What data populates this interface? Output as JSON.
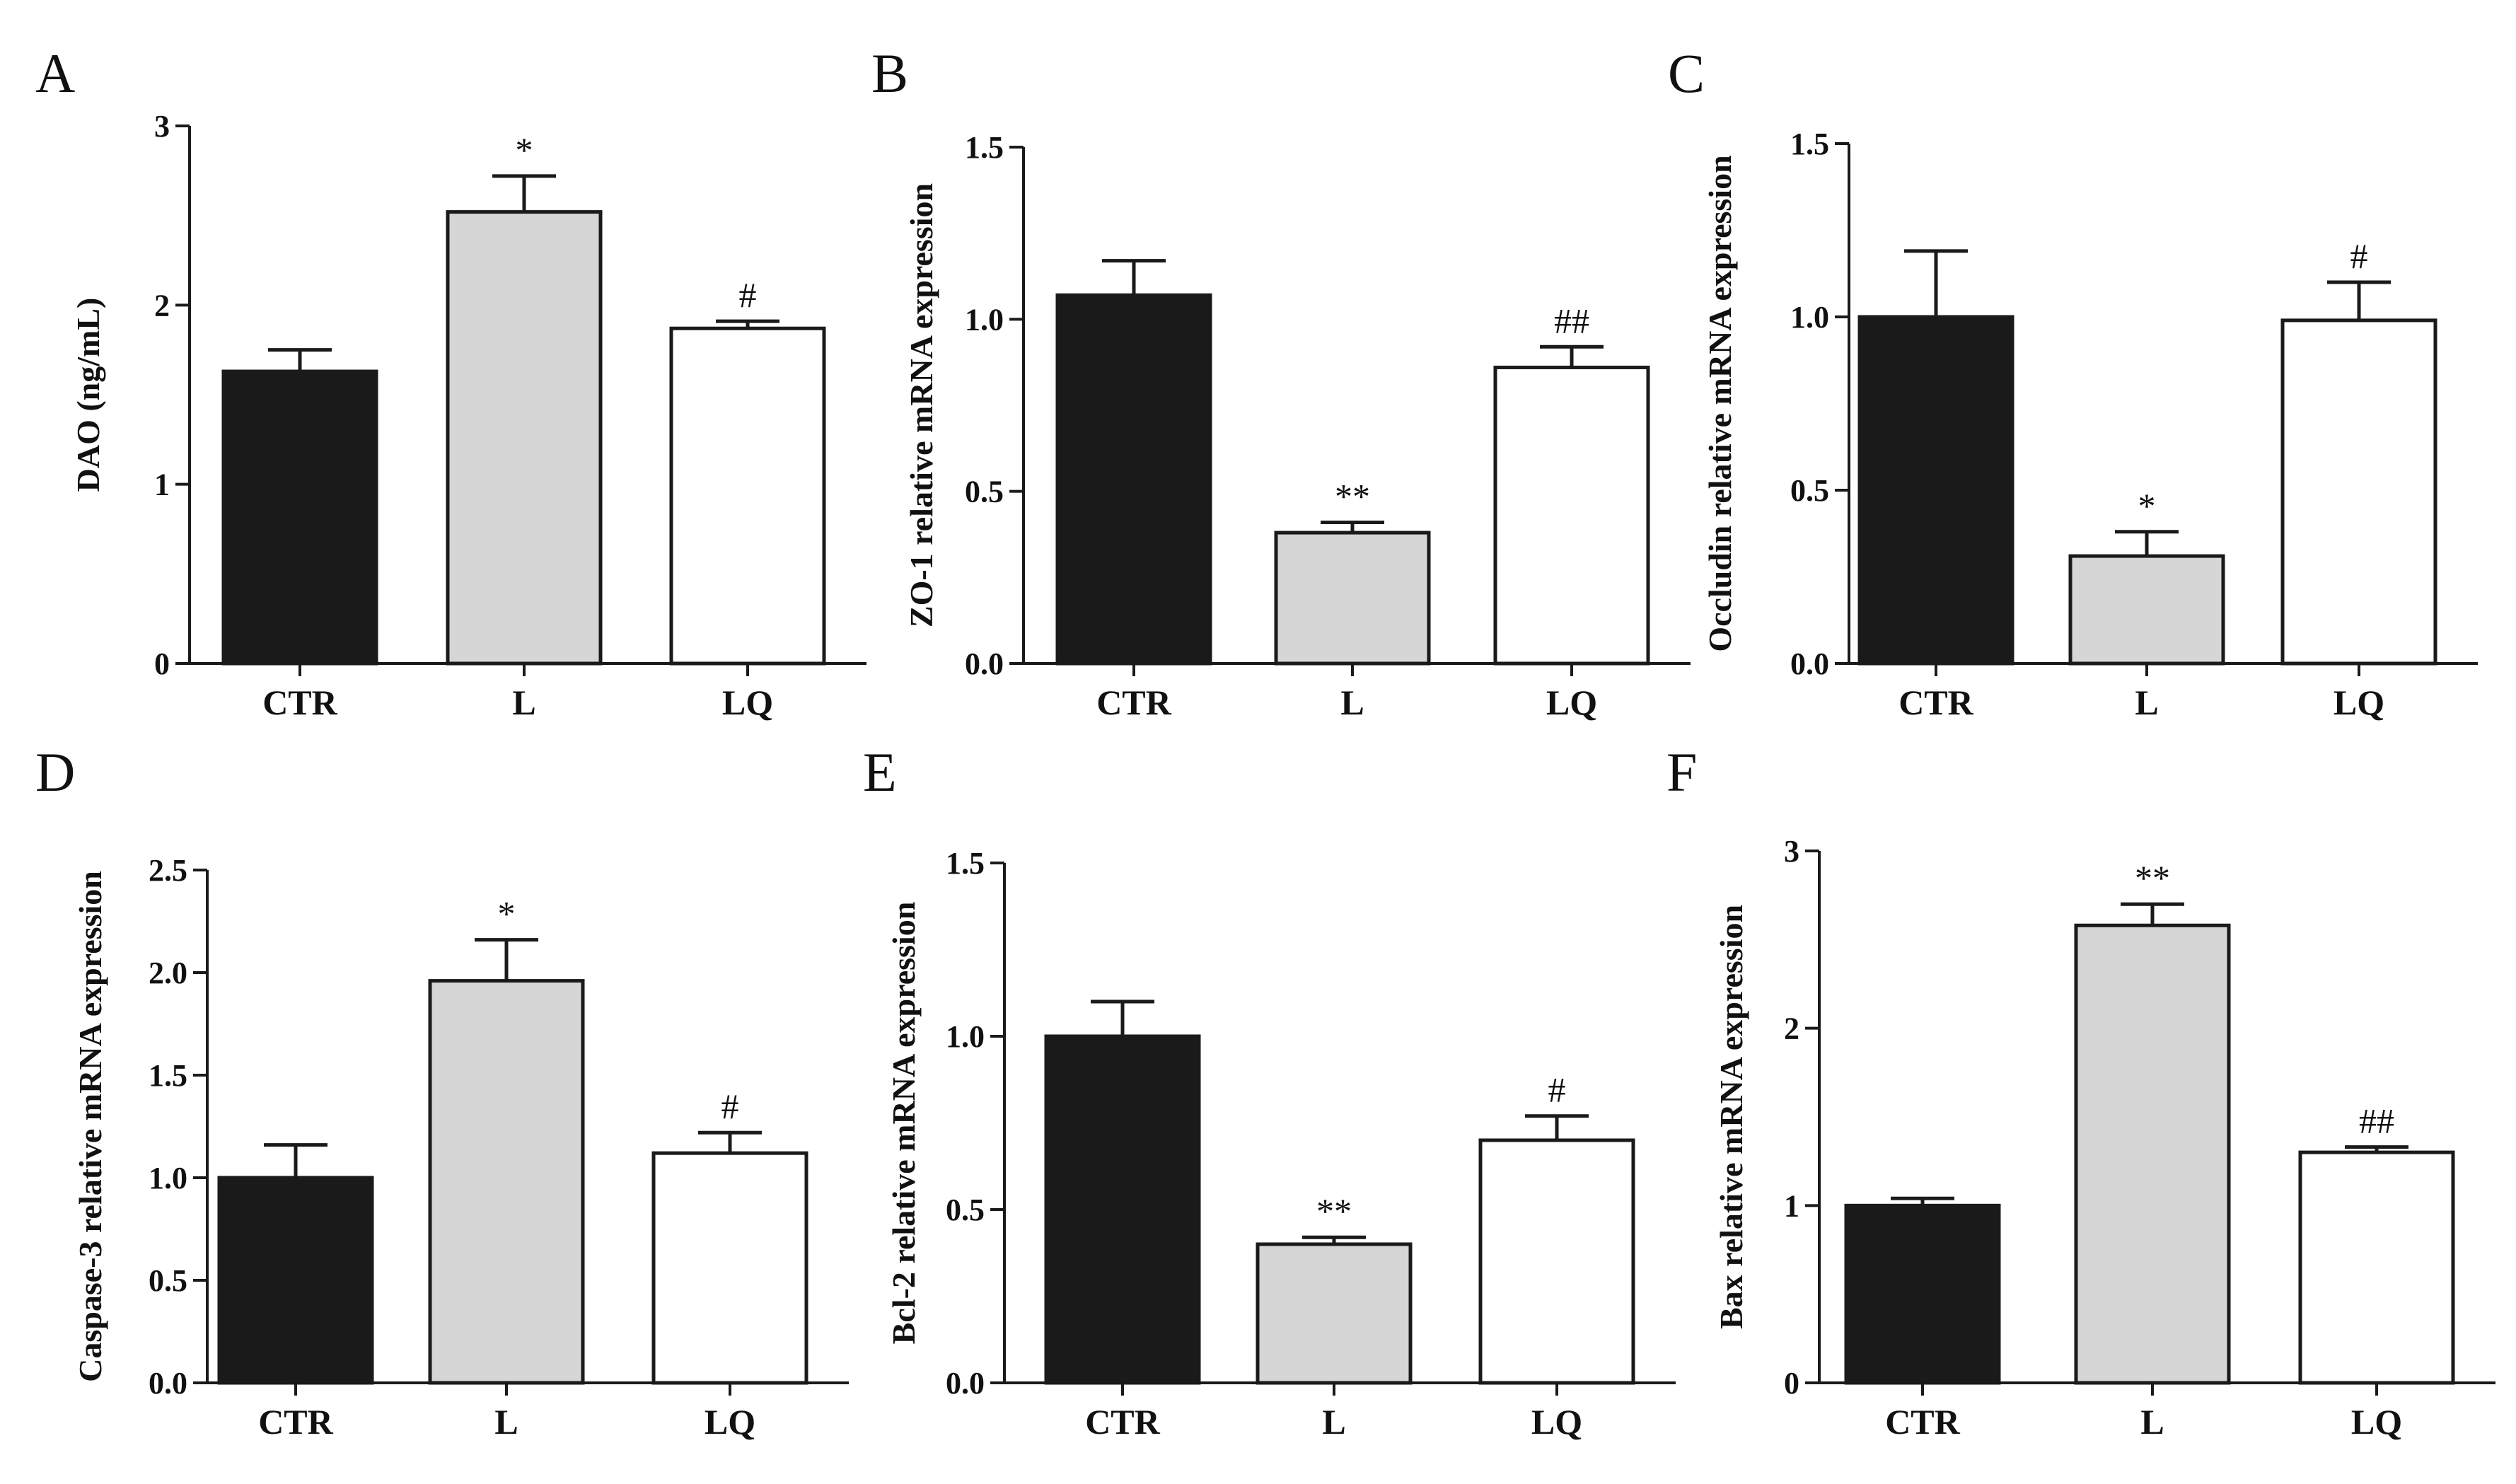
{
  "figure": {
    "description_free": true
  },
  "colors": {
    "CTR": "#1a1a1a",
    "L": "#d6d6d6",
    "LQ": "#ffffff",
    "stroke": "#1a1a1a"
  },
  "chart_data": [
    {
      "panel": "A",
      "type": "bar",
      "categories": [
        "CTR",
        "L",
        "LQ"
      ],
      "values": [
        1.63,
        2.52,
        1.87
      ],
      "errors": [
        0.12,
        0.2,
        0.04
      ],
      "significance": [
        "",
        "*",
        "#"
      ],
      "ylabel": "DAO (ng/mL)",
      "ylim": [
        0,
        3
      ],
      "yticks": [
        0,
        1,
        2,
        3
      ],
      "ytick_labels": [
        "0",
        "1",
        "2",
        "3"
      ]
    },
    {
      "panel": "B",
      "type": "bar",
      "categories": [
        "CTR",
        "L",
        "LQ"
      ],
      "values": [
        1.07,
        0.38,
        0.86
      ],
      "errors": [
        0.1,
        0.03,
        0.06
      ],
      "significance": [
        "",
        "**",
        "##"
      ],
      "ylabel": "ZO-1 relative mRNA expression",
      "ylim": [
        0,
        1.5
      ],
      "yticks": [
        0,
        0.5,
        1.0,
        1.5
      ],
      "ytick_labels": [
        "0.0",
        "0.5",
        "1.0",
        "1.5"
      ]
    },
    {
      "panel": "C",
      "type": "bar",
      "categories": [
        "CTR",
        "L",
        "LQ"
      ],
      "values": [
        1.0,
        0.31,
        0.99
      ],
      "errors": [
        0.19,
        0.07,
        0.11
      ],
      "significance": [
        "",
        "*",
        "#"
      ],
      "ylabel": "Occludin relative mRNA expression",
      "ylim": [
        0,
        1.5
      ],
      "yticks": [
        0,
        0.5,
        1.0,
        1.5
      ],
      "ytick_labels": [
        "0.0",
        "0.5",
        "1.0",
        "1.5"
      ]
    },
    {
      "panel": "D",
      "type": "bar",
      "categories": [
        "CTR",
        "L",
        "LQ"
      ],
      "values": [
        1.0,
        1.96,
        1.12
      ],
      "errors": [
        0.16,
        0.2,
        0.1
      ],
      "significance": [
        "",
        "*",
        "#"
      ],
      "ylabel": "Caspase-3 relative mRNA expression",
      "ylim": [
        0,
        2.5
      ],
      "yticks": [
        0,
        0.5,
        1.0,
        1.5,
        2.0,
        2.5
      ],
      "ytick_labels": [
        "0.0",
        "0.5",
        "1.0",
        "1.5",
        "2.0",
        "2.5"
      ]
    },
    {
      "panel": "E",
      "type": "bar",
      "categories": [
        "CTR",
        "L",
        "LQ"
      ],
      "values": [
        1.0,
        0.4,
        0.7
      ],
      "errors": [
        0.1,
        0.02,
        0.07
      ],
      "significance": [
        "",
        "**",
        "#"
      ],
      "ylabel": "Bcl-2 relative mRNA expression",
      "ylim": [
        0,
        1.5
      ],
      "yticks": [
        0,
        0.5,
        1.0,
        1.5
      ],
      "ytick_labels": [
        "0.0",
        "0.5",
        "1.0",
        "1.5"
      ]
    },
    {
      "panel": "F",
      "type": "bar",
      "categories": [
        "CTR",
        "L",
        "LQ"
      ],
      "values": [
        1.0,
        2.58,
        1.3
      ],
      "errors": [
        0.04,
        0.12,
        0.03
      ],
      "significance": [
        "",
        "**",
        "##"
      ],
      "ylabel": "Bax relative mRNA expression",
      "ylim": [
        0,
        3
      ],
      "yticks": [
        0,
        1,
        2,
        3
      ],
      "ytick_labels": [
        "0",
        "1",
        "2",
        "3"
      ]
    }
  ]
}
